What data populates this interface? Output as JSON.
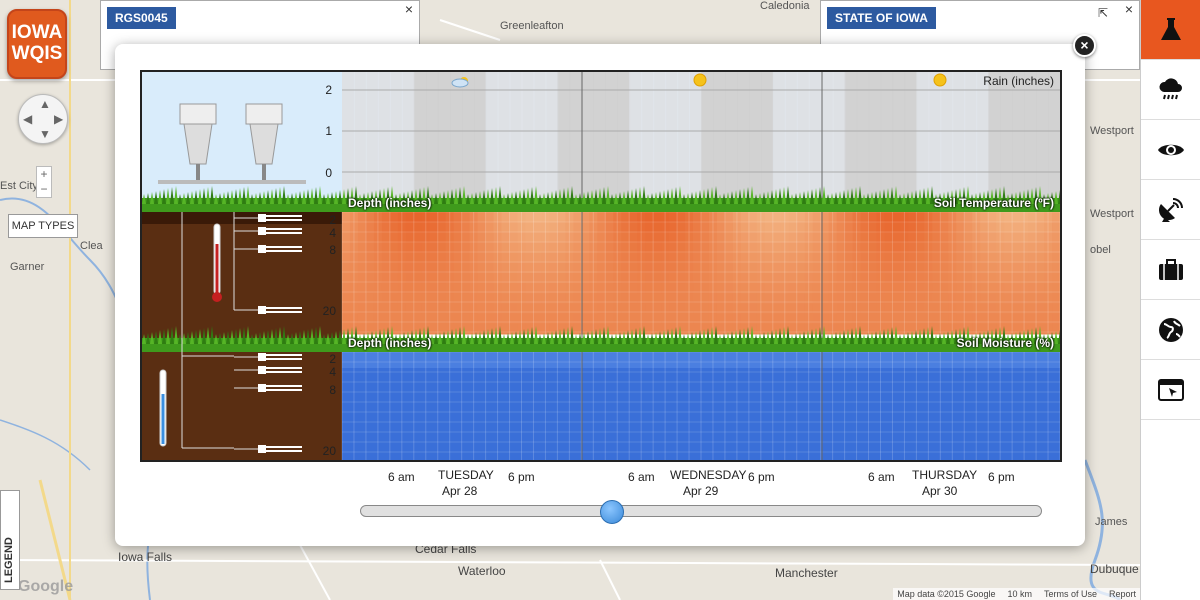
{
  "app": {
    "logo_line1": "IOWA",
    "logo_line2": "WQIS"
  },
  "map": {
    "map_types_label": "MAP TYPES",
    "legend_label": "LEGEND",
    "info_left_tag": "RGS0045",
    "info_right_tag": "STATE OF IOWA",
    "labels": [
      {
        "text": "Greenleafton"
      },
      {
        "text": "Caledonia"
      },
      {
        "text": "Garner"
      },
      {
        "text": "Clea"
      },
      {
        "text": "Iowa Falls"
      },
      {
        "text": "Cedar Falls"
      },
      {
        "text": "Waterloo"
      },
      {
        "text": "Manchester"
      },
      {
        "text": "Dubuque"
      },
      {
        "text": "Westport"
      },
      {
        "text": "Westport"
      },
      {
        "text": "James"
      },
      {
        "text": "Est City"
      },
      {
        "text": "obel"
      }
    ],
    "footer": [
      "Map data ©2015 Google",
      "10 km",
      "Terms of Use",
      "Report"
    ],
    "google": "Google"
  },
  "sidebar": {
    "items": [
      {
        "icon": "flask-icon",
        "active": true
      },
      {
        "icon": "rain-cloud-icon",
        "active": false
      },
      {
        "icon": "eye-icon",
        "active": false
      },
      {
        "icon": "satellite-dish-icon",
        "active": false
      },
      {
        "icon": "briefcase-icon",
        "active": false
      },
      {
        "icon": "globe-icon",
        "active": false
      },
      {
        "icon": "window-cursor-icon",
        "active": false
      }
    ]
  },
  "modal": {
    "close_label": "×",
    "rain_label": "Rain (inches)",
    "rain_ticks": [
      "2",
      "1",
      "0"
    ],
    "temp_depth_label": "Depth (inches)",
    "temp_label": "Soil Temperature (ºF)",
    "temp_ticks": [
      "2",
      "4",
      "8",
      "20"
    ],
    "moist_depth_label": "Depth (inches)",
    "moist_label": "Soil Moisture (%)",
    "moist_ticks": [
      "2",
      "4",
      "8",
      "20"
    ],
    "weather_icons": [
      "partly-cloudy-icon",
      "sun-icon",
      "sun-icon"
    ],
    "days": [
      {
        "am": "6 am",
        "day": "TUESDAY",
        "date": "Apr 28",
        "pm": "6 pm"
      },
      {
        "am": "6 am",
        "day": "WEDNESDAY",
        "date": "Apr 29",
        "pm": "6 pm"
      },
      {
        "am": "6 am",
        "day": "THURSDAY",
        "date": "Apr 30",
        "pm": "6 pm"
      }
    ],
    "slider_position": 0.37,
    "colors": {
      "rain_bg": "#d7d7d7",
      "soil": "#5a2e12",
      "moisture": "#3a6fd8",
      "temp_warm": "#e65a20",
      "temp_cool": "#f6c898",
      "grass": "#3f9a1c",
      "sky": "#d9ecfb"
    }
  }
}
